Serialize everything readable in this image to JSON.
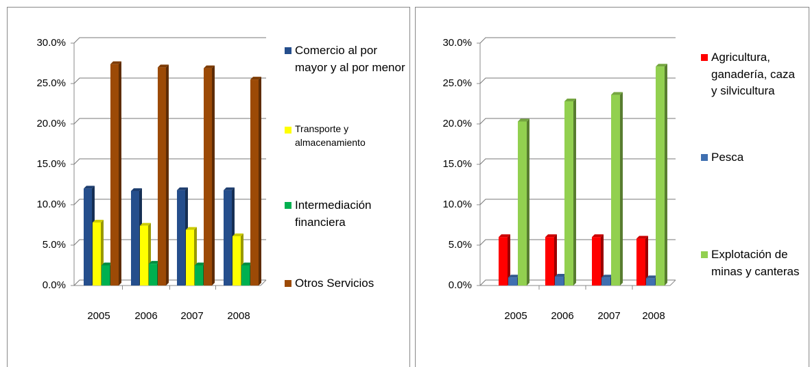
{
  "chart_data": [
    {
      "type": "bar",
      "categories": [
        "2005",
        "2006",
        "2007",
        "2008"
      ],
      "series": [
        {
          "name": "Comercio al por mayor y al por menor",
          "color": "#254e8c",
          "values": [
            12.0,
            11.7,
            11.8,
            11.8
          ]
        },
        {
          "name": "Transporte y almacenamiento",
          "color": "#ffff00",
          "values": [
            7.8,
            7.4,
            6.9,
            6.1
          ]
        },
        {
          "name": "Intermediación financiera",
          "color": "#00b050",
          "values": [
            2.5,
            2.7,
            2.5,
            2.5
          ]
        },
        {
          "name": "Otros Servicios",
          "color": "#9c4a06",
          "values": [
            27.4,
            27.0,
            26.9,
            25.5
          ]
        }
      ],
      "ylim": [
        0,
        30
      ],
      "yticks": [
        {
          "value": 0,
          "label": "0.0%"
        },
        {
          "value": 5,
          "label": "5.0%"
        },
        {
          "value": 10,
          "label": "10.0%"
        },
        {
          "value": 15,
          "label": "15.0%"
        },
        {
          "value": 20,
          "label": "20.0%"
        },
        {
          "value": 25,
          "label": "25.0%"
        },
        {
          "value": 30,
          "label": "30.0%"
        }
      ],
      "grid": true
    },
    {
      "type": "bar",
      "categories": [
        "2005",
        "2006",
        "2007",
        "2008"
      ],
      "series": [
        {
          "name": "Agricultura, ganadería, caza y silvicultura",
          "color": "#ff0000",
          "values": [
            6.0,
            6.0,
            6.0,
            5.8
          ]
        },
        {
          "name": "Pesca",
          "color": "#3f6fb0",
          "values": [
            1.0,
            1.1,
            1.0,
            0.9
          ]
        },
        {
          "name": "Explotación de minas y canteras",
          "color": "#92d050",
          "values": [
            20.3,
            22.8,
            23.6,
            27.1
          ]
        }
      ],
      "ylim": [
        0,
        30
      ],
      "yticks": [
        {
          "value": 0,
          "label": "0.0%"
        },
        {
          "value": 5,
          "label": "5.0%"
        },
        {
          "value": 10,
          "label": "10.0%"
        },
        {
          "value": 15,
          "label": "15.0%"
        },
        {
          "value": 20,
          "label": "20.0%"
        },
        {
          "value": 25,
          "label": "25.0%"
        },
        {
          "value": 30,
          "label": "30.0%"
        }
      ],
      "grid": true
    }
  ]
}
